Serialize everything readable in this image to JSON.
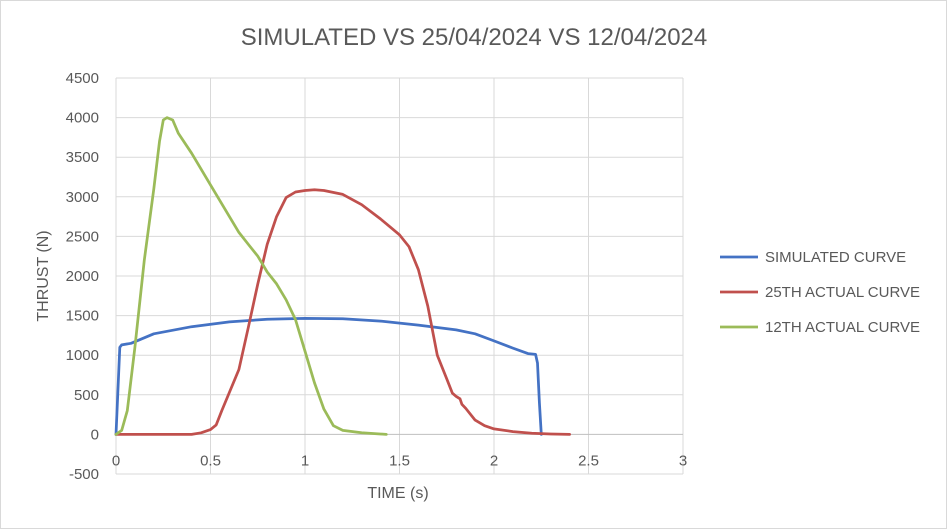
{
  "chart_data": {
    "type": "line",
    "title": "SIMULATED VS 25/04/2024 VS 12/04/2024",
    "xlabel": "TIME (s)",
    "ylabel": "THRUST (N)",
    "xlim": [
      0,
      3
    ],
    "ylim": [
      -500,
      4500
    ],
    "xticks": [
      0,
      0.5,
      1,
      1.5,
      2,
      2.5,
      3
    ],
    "xtick_labels": [
      "0",
      "0.5",
      "1",
      "1.5",
      "2",
      "2.5",
      "3"
    ],
    "yticks": [
      -500,
      0,
      500,
      1000,
      1500,
      2000,
      2500,
      3000,
      3500,
      4000,
      4500
    ],
    "ytick_labels": [
      "-500",
      "0",
      "500",
      "1000",
      "1500",
      "2000",
      "2500",
      "3000",
      "3500",
      "4000",
      "4500"
    ],
    "grid": true,
    "legend_position": "right",
    "series": [
      {
        "name": "SIMULATED CURVE",
        "color": "#4472c4",
        "points": [
          [
            0,
            0
          ],
          [
            0.02,
            1100
          ],
          [
            0.03,
            1130
          ],
          [
            0.08,
            1150
          ],
          [
            0.2,
            1270
          ],
          [
            0.4,
            1360
          ],
          [
            0.6,
            1420
          ],
          [
            0.8,
            1455
          ],
          [
            1.0,
            1465
          ],
          [
            1.2,
            1460
          ],
          [
            1.4,
            1430
          ],
          [
            1.6,
            1380
          ],
          [
            1.8,
            1320
          ],
          [
            1.9,
            1270
          ],
          [
            2.0,
            1180
          ],
          [
            2.1,
            1090
          ],
          [
            2.18,
            1020
          ],
          [
            2.22,
            1010
          ],
          [
            2.23,
            900
          ],
          [
            2.24,
            400
          ],
          [
            2.25,
            0
          ]
        ]
      },
      {
        "name": "25TH ACTUAL CURVE",
        "color": "#c0504d",
        "points": [
          [
            0,
            0
          ],
          [
            0.2,
            0
          ],
          [
            0.4,
            0
          ],
          [
            0.45,
            20
          ],
          [
            0.5,
            60
          ],
          [
            0.53,
            120
          ],
          [
            0.56,
            300
          ],
          [
            0.6,
            530
          ],
          [
            0.65,
            820
          ],
          [
            0.7,
            1350
          ],
          [
            0.75,
            1900
          ],
          [
            0.8,
            2400
          ],
          [
            0.85,
            2750
          ],
          [
            0.9,
            2990
          ],
          [
            0.95,
            3060
          ],
          [
            1.0,
            3080
          ],
          [
            1.05,
            3090
          ],
          [
            1.1,
            3080
          ],
          [
            1.2,
            3030
          ],
          [
            1.3,
            2900
          ],
          [
            1.4,
            2720
          ],
          [
            1.45,
            2620
          ],
          [
            1.5,
            2520
          ],
          [
            1.55,
            2370
          ],
          [
            1.6,
            2080
          ],
          [
            1.65,
            1620
          ],
          [
            1.7,
            1000
          ],
          [
            1.75,
            700
          ],
          [
            1.78,
            520
          ],
          [
            1.8,
            480
          ],
          [
            1.82,
            450
          ],
          [
            1.83,
            380
          ],
          [
            1.85,
            330
          ],
          [
            1.9,
            180
          ],
          [
            1.95,
            110
          ],
          [
            2.0,
            70
          ],
          [
            2.1,
            35
          ],
          [
            2.2,
            15
          ],
          [
            2.3,
            5
          ],
          [
            2.4,
            0
          ]
        ]
      },
      {
        "name": "12TH ACTUAL CURVE",
        "color": "#9bbb59",
        "points": [
          [
            0,
            0
          ],
          [
            0.03,
            50
          ],
          [
            0.06,
            300
          ],
          [
            0.1,
            1100
          ],
          [
            0.15,
            2200
          ],
          [
            0.2,
            3100
          ],
          [
            0.23,
            3700
          ],
          [
            0.25,
            3970
          ],
          [
            0.27,
            4000
          ],
          [
            0.3,
            3970
          ],
          [
            0.33,
            3800
          ],
          [
            0.4,
            3550
          ],
          [
            0.5,
            3150
          ],
          [
            0.6,
            2750
          ],
          [
            0.65,
            2550
          ],
          [
            0.7,
            2400
          ],
          [
            0.75,
            2250
          ],
          [
            0.8,
            2050
          ],
          [
            0.85,
            1900
          ],
          [
            0.9,
            1700
          ],
          [
            0.95,
            1450
          ],
          [
            1.0,
            1050
          ],
          [
            1.05,
            650
          ],
          [
            1.1,
            320
          ],
          [
            1.15,
            110
          ],
          [
            1.2,
            50
          ],
          [
            1.3,
            20
          ],
          [
            1.43,
            0
          ]
        ]
      }
    ]
  }
}
